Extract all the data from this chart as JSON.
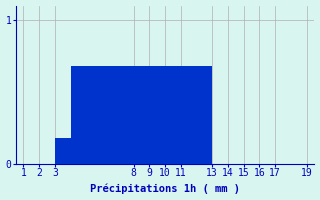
{
  "hours": [
    1,
    2,
    3,
    4,
    5,
    6,
    7,
    8,
    9,
    10,
    11,
    12,
    13,
    14,
    15,
    16,
    17,
    18,
    19
  ],
  "values": [
    0,
    0,
    0.18,
    0.68,
    0.68,
    0.68,
    0.68,
    0.68,
    0.68,
    0.68,
    0.68,
    0.68,
    0,
    0,
    0,
    0,
    0,
    0,
    0
  ],
  "bar_color": "#0033cc",
  "background_color": "#d8f5f0",
  "grid_color": "#b0b0b0",
  "axis_color": "#0000bb",
  "tick_label_color": "#0000bb",
  "xlabel": "Précipitations 1h ( mm )",
  "xlabel_color": "#0000bb",
  "ylim": [
    0,
    1.1
  ],
  "xlim": [
    0.5,
    19.5
  ],
  "yticks": [
    0,
    1
  ],
  "xticks": [
    1,
    2,
    3,
    8,
    9,
    10,
    11,
    13,
    14,
    15,
    16,
    17,
    19
  ],
  "bar_width": 1.0,
  "xlabel_fontsize": 7.5,
  "tick_fontsize": 7
}
